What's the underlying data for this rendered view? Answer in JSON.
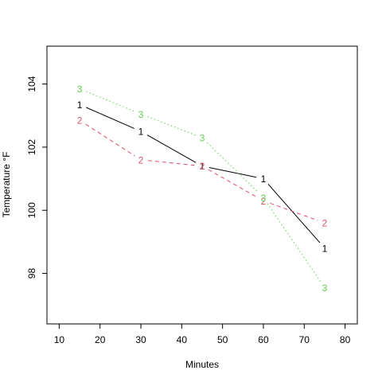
{
  "chart_data": {
    "type": "line",
    "title": "",
    "xlabel": "Minutes",
    "ylabel": "Temperature °F",
    "xlim": [
      7,
      83
    ],
    "ylim": [
      96.4,
      105.2
    ],
    "x_ticks": [
      10,
      20,
      30,
      40,
      50,
      60,
      70,
      80
    ],
    "y_ticks": [
      98,
      100,
      102,
      104
    ],
    "grid": false,
    "series": [
      {
        "label": "1",
        "color": "#000000",
        "dash": "solid",
        "points": [
          [
            15,
            103.35
          ],
          [
            30,
            102.5
          ],
          [
            45,
            101.4
          ],
          [
            60,
            101.0
          ],
          [
            75,
            98.8
          ]
        ]
      },
      {
        "label": "2",
        "color": "#df536b",
        "dash": "dashed",
        "points": [
          [
            15,
            102.85
          ],
          [
            30,
            101.6
          ],
          [
            45,
            101.4
          ],
          [
            60,
            100.3
          ],
          [
            75,
            99.6
          ]
        ]
      },
      {
        "label": "3",
        "color": "#61d04f",
        "dash": "dotted",
        "points": [
          [
            15,
            103.85
          ],
          [
            30,
            103.05
          ],
          [
            45,
            102.3
          ],
          [
            60,
            100.4
          ],
          [
            75,
            97.55
          ]
        ]
      }
    ]
  }
}
